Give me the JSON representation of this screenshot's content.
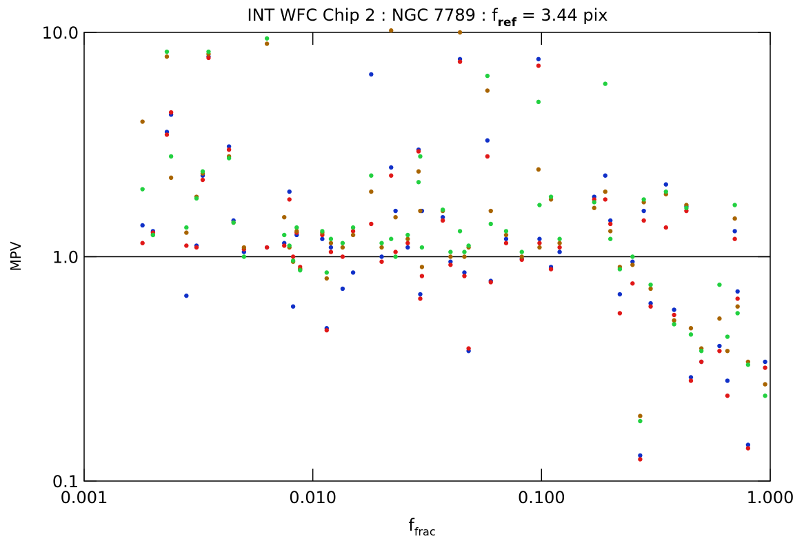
{
  "chart_data": {
    "type": "scatter",
    "title": [
      "INT WFC Chip 2 : NGC 7789 : f",
      "ref",
      " = 3.44 pix"
    ],
    "x_label": [
      "f",
      "frac"
    ],
    "y_label": "MPV",
    "log_x": true,
    "log_y": true,
    "xlim": [
      0.001,
      1.0
    ],
    "ylim": [
      0.1,
      10.0
    ],
    "xticks": [
      0.001,
      {
        "value": 0.01,
        "label": "0.010"
      },
      {
        "value": 0.1,
        "label": "0.100"
      },
      {
        "value": 1.0,
        "label": "1.000"
      }
    ],
    "yticks": [
      0.1,
      {
        "value": 1.0,
        "label": "1.0"
      },
      {
        "value": 10.0,
        "label": "10.0"
      }
    ],
    "reference_line": 1.0,
    "x": [
      0.0018,
      0.002,
      0.0023,
      0.0024,
      0.0028,
      0.0031,
      0.0033,
      0.0035,
      0.0043,
      0.0045,
      0.005,
      0.0063,
      0.0075,
      0.0079,
      0.0082,
      0.0085,
      0.0088,
      0.011,
      0.0115,
      0.012,
      0.0135,
      0.015,
      0.018,
      0.02,
      0.022,
      0.023,
      0.026,
      0.029,
      0.0295,
      0.03,
      0.037,
      0.04,
      0.044,
      0.046,
      0.048,
      0.058,
      0.06,
      0.07,
      0.082,
      0.097,
      0.098,
      0.11,
      0.12,
      0.17,
      0.19,
      0.2,
      0.22,
      0.25,
      0.27,
      0.28,
      0.3,
      0.35,
      0.38,
      0.43,
      0.45,
      0.5,
      0.6,
      0.65,
      0.7,
      0.72,
      0.8,
      0.95
    ],
    "series": [
      {
        "color": "#1030c8",
        "values": [
          1.38,
          1.3,
          3.6,
          4.3,
          0.67,
          1.12,
          2.3,
          7.8,
          3.1,
          1.45,
          1.05,
          1.1,
          1.15,
          1.95,
          0.6,
          1.25,
          0.88,
          1.2,
          0.48,
          1.1,
          0.72,
          0.85,
          6.5,
          1.0,
          2.5,
          1.6,
          1.1,
          3.0,
          0.68,
          1.6,
          1.5,
          0.95,
          7.6,
          0.85,
          0.38,
          3.3,
          0.78,
          1.2,
          0.98,
          7.6,
          1.2,
          0.9,
          1.05,
          1.85,
          2.3,
          1.45,
          0.68,
          0.95,
          0.13,
          1.6,
          0.62,
          2.1,
          0.58,
          1.68,
          0.29,
          0.34,
          0.4,
          0.28,
          1.3,
          0.7,
          0.145,
          0.34
        ]
      },
      {
        "color": "#e01818",
        "values": [
          1.15,
          1.28,
          3.5,
          4.4,
          1.12,
          1.1,
          2.2,
          7.7,
          3.0,
          1.42,
          1.08,
          1.1,
          1.12,
          1.8,
          1.0,
          1.28,
          0.9,
          1.25,
          0.47,
          1.05,
          1.0,
          1.3,
          1.4,
          0.95,
          2.3,
          1.05,
          1.15,
          2.95,
          0.65,
          0.82,
          1.45,
          0.92,
          7.4,
          0.82,
          0.39,
          2.8,
          0.77,
          1.15,
          0.97,
          7.1,
          1.15,
          0.88,
          1.1,
          1.8,
          1.8,
          1.4,
          0.56,
          0.76,
          0.125,
          1.45,
          0.6,
          1.35,
          0.55,
          1.6,
          0.28,
          0.34,
          0.38,
          0.24,
          1.2,
          0.65,
          0.14,
          0.32
        ]
      },
      {
        "color": "#a86400",
        "values": [
          4.0,
          1.25,
          7.8,
          2.25,
          1.28,
          1.85,
          2.35,
          8.0,
          2.8,
          1.42,
          1.1,
          8.9,
          1.5,
          1.1,
          0.95,
          1.3,
          0.88,
          1.28,
          0.8,
          1.15,
          1.1,
          1.25,
          1.95,
          1.1,
          10.2,
          1.5,
          1.2,
          2.4,
          1.6,
          0.9,
          1.6,
          1.0,
          10.0,
          1.0,
          1.1,
          5.5,
          1.6,
          1.25,
          1.0,
          2.45,
          1.1,
          1.8,
          1.15,
          1.65,
          1.95,
          1.3,
          0.9,
          0.92,
          0.195,
          1.75,
          0.72,
          1.9,
          0.52,
          1.7,
          0.48,
          0.39,
          0.53,
          0.38,
          1.48,
          0.6,
          0.34,
          0.27
        ]
      },
      {
        "color": "#22d040",
        "values": [
          2.0,
          1.25,
          8.2,
          2.8,
          1.35,
          1.82,
          2.4,
          8.2,
          2.75,
          1.42,
          1.0,
          9.4,
          1.25,
          1.12,
          0.96,
          1.35,
          0.87,
          1.3,
          0.85,
          1.2,
          1.15,
          1.35,
          2.3,
          1.15,
          1.2,
          1.0,
          1.25,
          2.15,
          2.8,
          1.1,
          1.62,
          1.05,
          1.3,
          1.05,
          1.12,
          6.4,
          1.4,
          1.3,
          1.05,
          4.9,
          1.7,
          1.85,
          1.2,
          1.75,
          5.9,
          1.2,
          0.88,
          1.0,
          0.185,
          1.8,
          0.75,
          1.95,
          0.5,
          1.65,
          0.45,
          0.38,
          0.75,
          0.44,
          1.7,
          0.56,
          0.33,
          0.24
        ]
      }
    ]
  }
}
